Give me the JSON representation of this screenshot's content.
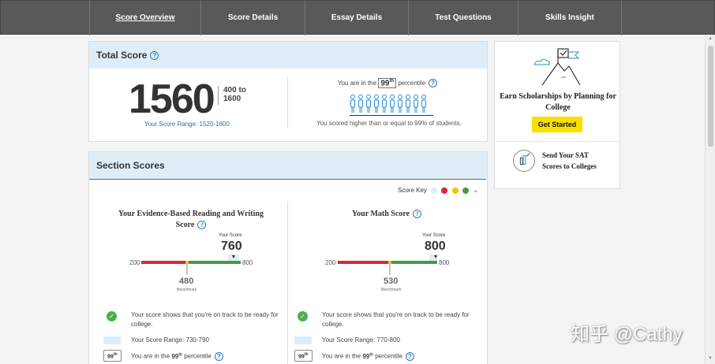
{
  "nav": {
    "tabs": [
      {
        "label": "Score Overview",
        "active": true
      },
      {
        "label": "Score Details",
        "active": false
      },
      {
        "label": "Essay Details",
        "active": false
      },
      {
        "label": "Test Questions",
        "active": false
      },
      {
        "label": "Skills Insight",
        "active": false
      }
    ]
  },
  "total": {
    "title": "Total Score",
    "score": "1560",
    "range_low": "400 to",
    "range_high": "1600",
    "your_range_label": "Your Score Range:",
    "your_range_value": "1520-1600",
    "percentile_prefix": "You are in the",
    "percentile_value": "99",
    "percentile_suffix_sup": "th",
    "percentile_suffix": "percentile",
    "percentile_note": "You scored higher than or equal to 99% of students."
  },
  "sections": {
    "title": "Section Scores",
    "score_key_label": "Score Key",
    "key_colors": [
      "#dfeef6",
      "#d9263d",
      "#f2c500",
      "#3f9c48"
    ],
    "columns": [
      {
        "title": "Your Evidence-Based Reading and Writing Score",
        "your_score_label": "Your Score",
        "score": "760",
        "min": "200",
        "max": "800",
        "benchmark": "480",
        "benchmark_label": "Benchmark",
        "ready_note": "Your score shows that you're on track to be ready for college.",
        "range_note": "Your Score Range: 730-790",
        "pct_value": "99",
        "pct_sup": "th",
        "pct_prefix": "You are in the",
        "pct_bold": "99",
        "pct_bold_sup": "th",
        "pct_suffix": "percentile"
      },
      {
        "title": "Your Math Score",
        "your_score_label": "Your Score",
        "score": "800",
        "min": "200",
        "max": "800",
        "benchmark": "530",
        "benchmark_label": "Benchmark",
        "ready_note": "Your score shows that you're on track to be ready for college.",
        "range_note": "Your Score Range: 770-800",
        "pct_value": "99",
        "pct_sup": "th",
        "pct_prefix": "You are in the",
        "pct_bold": "99",
        "pct_bold_sup": "th",
        "pct_suffix": "percentile"
      }
    ]
  },
  "side": {
    "promo_title": "Earn Scholarships by Planning for College",
    "button_label": "Get Started",
    "send_text": "Send Your SAT Scores to Colleges"
  },
  "watermark": "知乎 @Cathy",
  "colors": {
    "accent_blue": "#2e6ca5",
    "header_bg": "#dfeef6",
    "button_yellow": "#f9e000"
  }
}
